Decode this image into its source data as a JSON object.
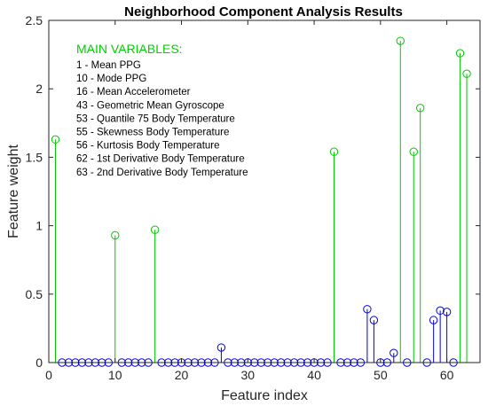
{
  "chart_data": {
    "type": "stem",
    "title": "Neighborhood Component Analysis Results",
    "xlabel": "Feature index",
    "ylabel": "Feature weight",
    "xlim": [
      0,
      65
    ],
    "ylim": [
      0,
      2.5
    ],
    "xticks": [
      0,
      10,
      20,
      30,
      40,
      50,
      60
    ],
    "yticks": [
      0,
      0.5,
      1,
      1.5,
      2,
      2.5
    ],
    "xtick_labels": [
      "0",
      "10",
      "20",
      "30",
      "40",
      "50",
      "60"
    ],
    "ytick_labels": [
      "0",
      "0.5",
      "1",
      "1.5",
      "2",
      "2.5"
    ],
    "grid": false,
    "series": [
      {
        "color": "#00c800",
        "x": [
          1,
          10,
          16,
          43,
          53,
          55,
          56,
          62,
          63
        ],
        "y": [
          1.63,
          0.93,
          0.97,
          1.54,
          2.35,
          1.54,
          1.86,
          2.26,
          2.11
        ]
      },
      {
        "color": "#0000e0",
        "x": [
          2,
          3,
          4,
          5,
          6,
          7,
          8,
          9,
          11,
          12,
          13,
          14,
          15,
          17,
          18,
          19,
          20,
          21,
          22,
          23,
          24,
          25,
          26,
          27,
          28,
          29,
          30,
          31,
          32,
          33,
          34,
          35,
          36,
          37,
          38,
          39,
          40,
          41,
          42,
          44,
          45,
          46,
          47,
          48,
          49,
          50,
          51,
          52,
          54,
          57,
          58,
          59,
          60,
          61
        ],
        "y": [
          0,
          0,
          0,
          0,
          0,
          0,
          0,
          0,
          0,
          0,
          0,
          0,
          0,
          0,
          0,
          0,
          0,
          0,
          0,
          0,
          0,
          0,
          0.11,
          0,
          0,
          0,
          0,
          0,
          0,
          0,
          0,
          0,
          0,
          0,
          0,
          0,
          0,
          0,
          0,
          0,
          0,
          0,
          0,
          0.39,
          0.31,
          0,
          0,
          0.07,
          0,
          0,
          0.31,
          0.38,
          0.37,
          0
        ]
      }
    ],
    "annotation": {
      "title": "MAIN VARIABLES:",
      "title_color": "#00d000",
      "lines": [
        "1 - Mean PPG",
        "10 - Mode PPG",
        "16 - Mean Accelerometer",
        "43 - Geometric Mean Gyroscope",
        "53 - Quantile 75 Body Temperature",
        "55 - Skewness Body Temperature",
        "56 - Kurtosis Body Temperature",
        "62 - 1st Derivative Body Temperature",
        "63 - 2nd Derivative Body Temperature"
      ]
    }
  }
}
